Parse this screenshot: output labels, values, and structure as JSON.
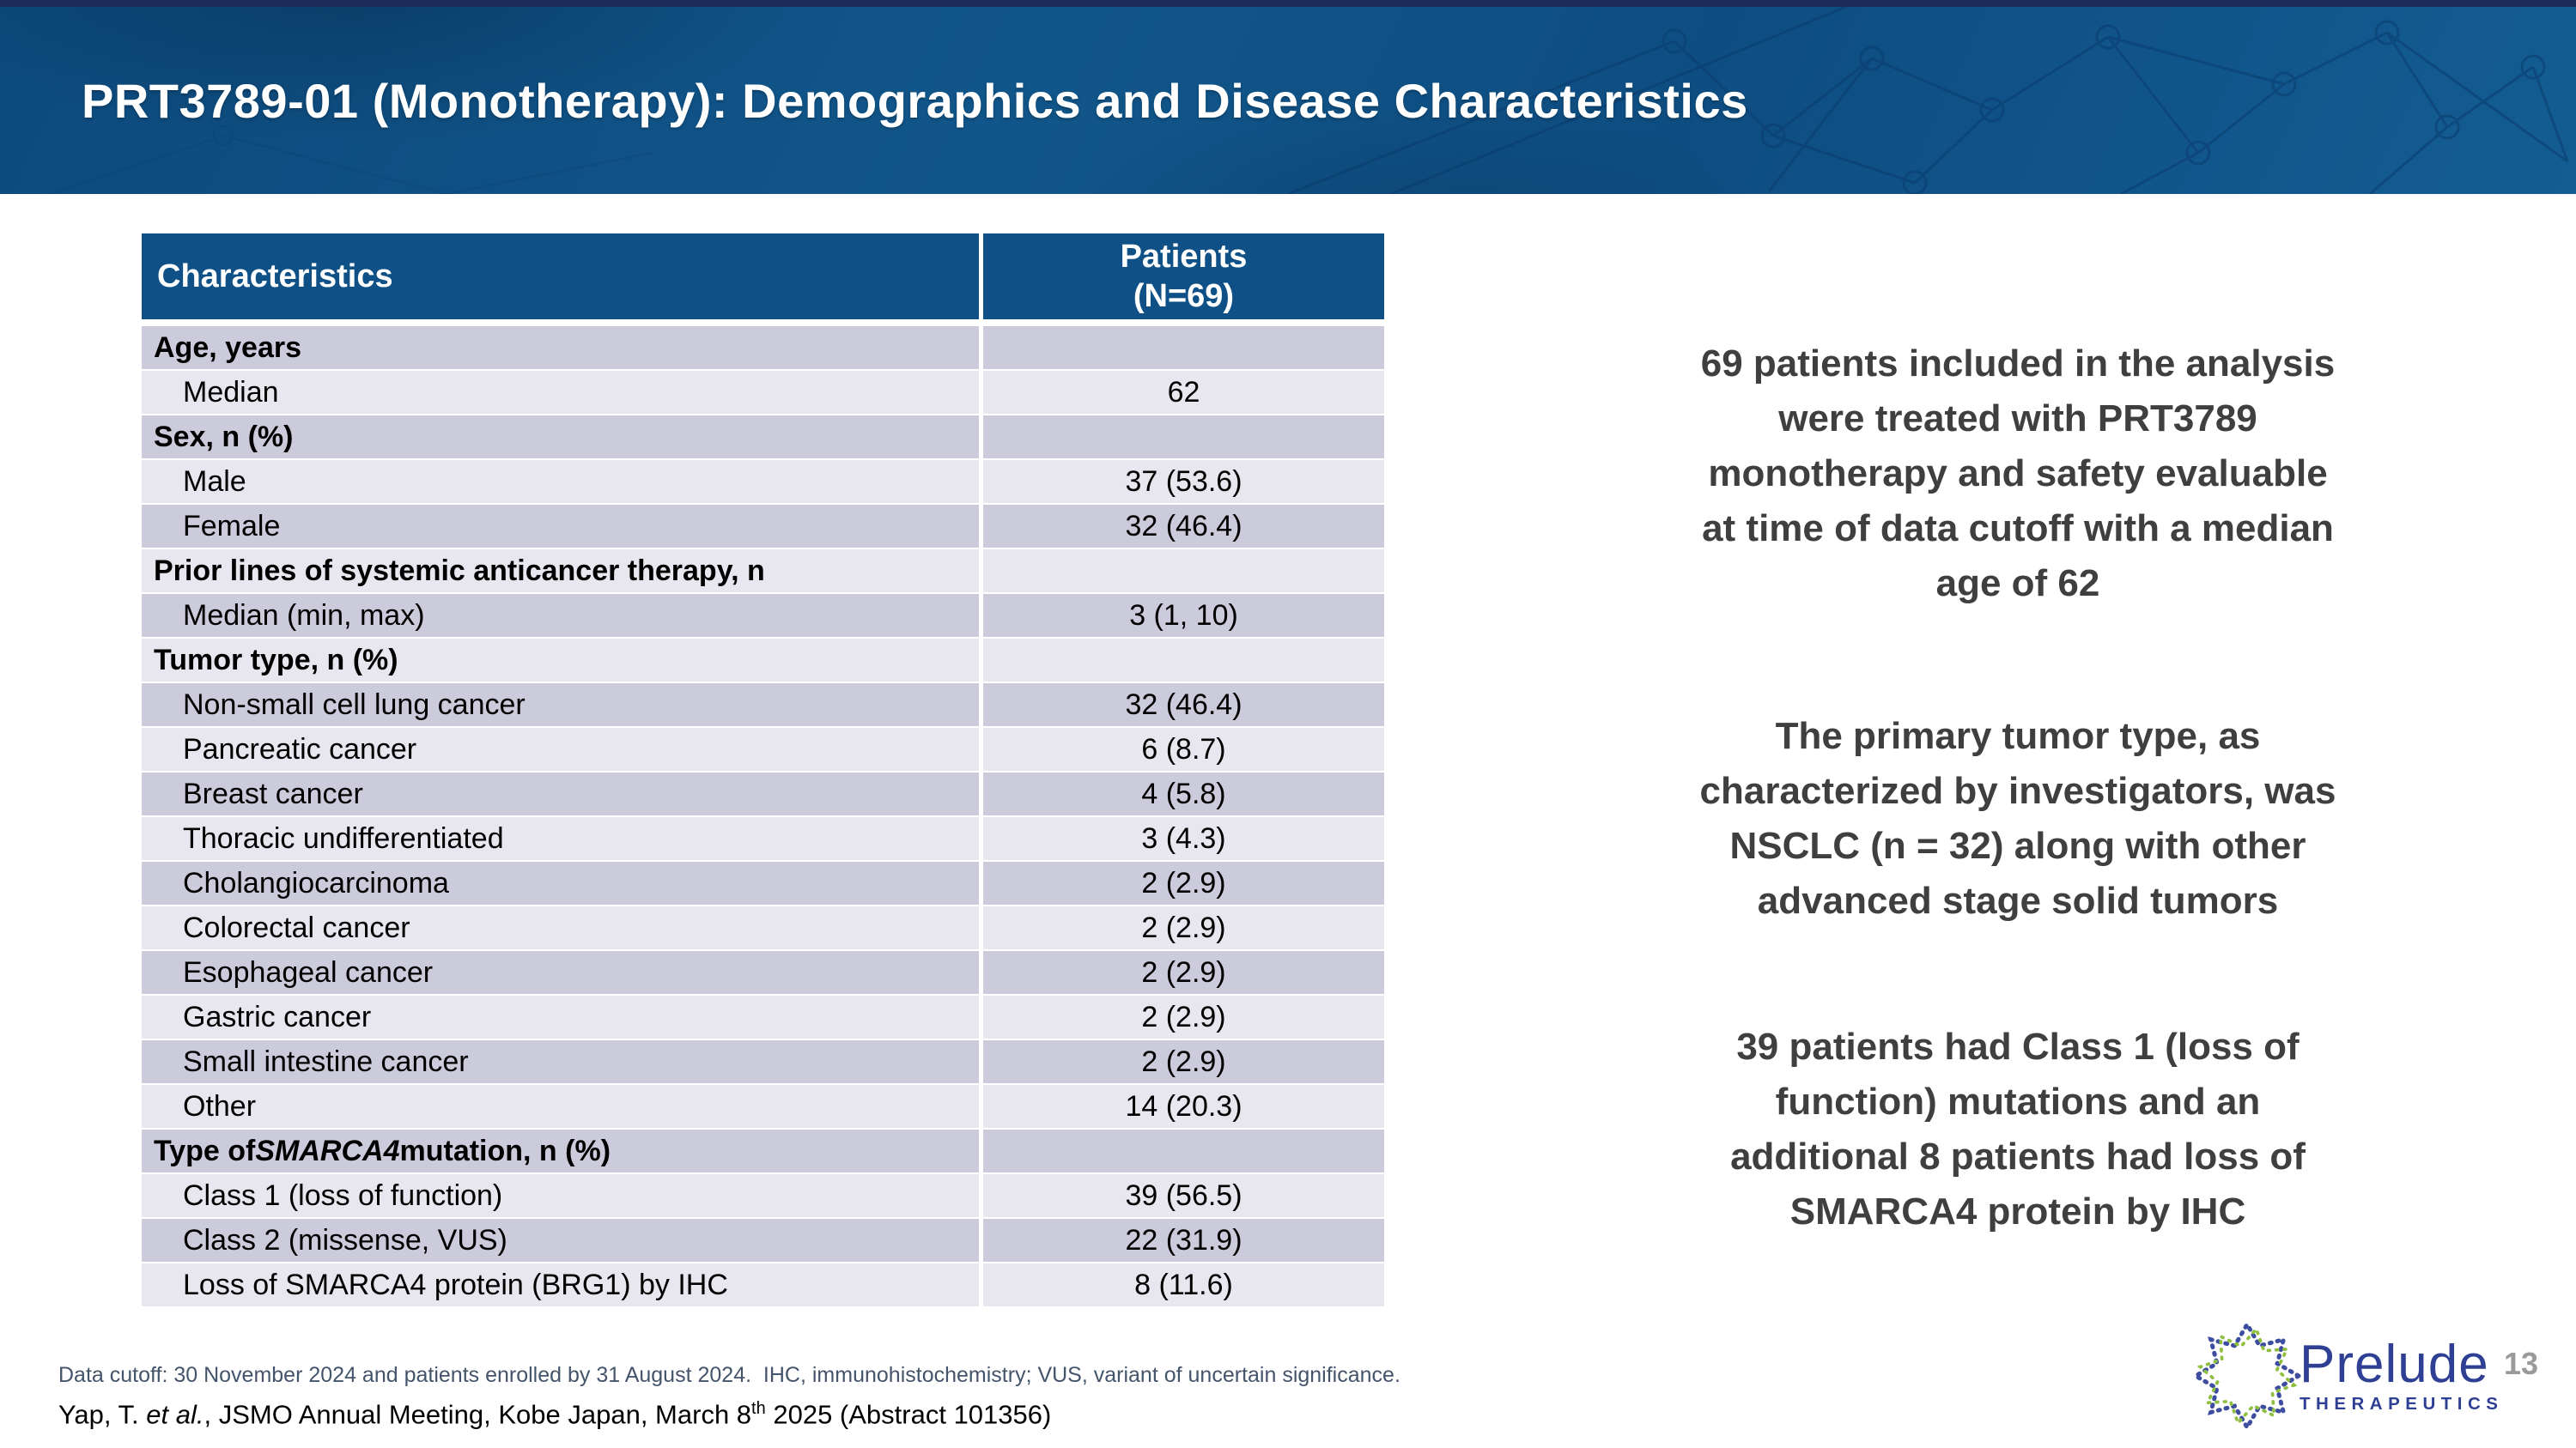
{
  "slide": {
    "title": "PRT3789-01 (Monotherapy): Demographics and Disease Characteristics",
    "page_number": "13"
  },
  "colors": {
    "top_strip_navy": "#1a2b5c",
    "banner_blue": "#0e4d81",
    "table_header_blue": "#0f5186",
    "row_dark": "#cccbdb",
    "row_light": "#e8e7f0",
    "text_gray": "#3f3f3f",
    "footnote_color": "#44546a",
    "logo_blue": "#2e3f94",
    "page_number_gray": "#9a9a9a"
  },
  "table": {
    "header": {
      "col1": "Characteristics",
      "col2": "Patients\n(N=69)"
    },
    "rows": [
      {
        "category": true,
        "label": "Age, years",
        "value": ""
      },
      {
        "label": "Median",
        "value": "62"
      },
      {
        "category": true,
        "label": "Sex, n (%)",
        "value": ""
      },
      {
        "label": "Male",
        "value": "37 (53.6)"
      },
      {
        "label": "Female",
        "value": "32 (46.4)"
      },
      {
        "category": true,
        "label": "Prior lines of systemic anticancer therapy, n",
        "value": ""
      },
      {
        "label": "Median (min, max)",
        "value": "3 (1, 10)"
      },
      {
        "category": true,
        "label": "Tumor type, n (%)",
        "value": ""
      },
      {
        "label": "Non-small cell lung cancer",
        "value": "32 (46.4)"
      },
      {
        "label": "Pancreatic cancer",
        "value": "6 (8.7)"
      },
      {
        "label": "Breast cancer",
        "value": "4 (5.8)"
      },
      {
        "label": "Thoracic undifferentiated",
        "value": "3 (4.3)"
      },
      {
        "label": "Cholangiocarcinoma",
        "value": "2 (2.9)"
      },
      {
        "label": "Colorectal cancer",
        "value": "2 (2.9)"
      },
      {
        "label": "Esophageal cancer",
        "value": "2 (2.9)"
      },
      {
        "label": "Gastric cancer",
        "value": "2 (2.9)"
      },
      {
        "label": "Small intestine cancer",
        "value": "2 (2.9)"
      },
      {
        "label": "Other",
        "value": "14 (20.3)"
      },
      {
        "category": true,
        "label_prefix": "Type of ",
        "label_italic": "SMARCA4",
        "label_suffix": " mutation, n (%)",
        "value": ""
      },
      {
        "label": "Class 1 (loss of function)",
        "value": "39 (56.5)"
      },
      {
        "label": "Class 2 (missense, VUS)",
        "value": "22 (31.9)"
      },
      {
        "label": "Loss of SMARCA4 protein (BRG1) by IHC",
        "value": "8 (11.6)"
      }
    ]
  },
  "highlights": {
    "block1": "69 patients included in the analysis\nwere treated with PRT3789\nmonotherapy and safety evaluable\nat time of data cutoff with a median\nage of 62",
    "block2": "The primary tumor type, as\ncharacterized by investigators, was\nNSCLC (n = 32) along with other\nadvanced stage solid tumors",
    "block3": "39 patients had Class 1 (loss of\nfunction) mutations and an\nadditional 8 patients had loss of\nSMARCA4 protein by IHC"
  },
  "footer": {
    "footnote": "Data cutoff: 30 November 2024 and patients enrolled by 31 August 2024.  IHC, immunohistochemistry; VUS, variant of uncertain significance.",
    "citation": {
      "prefix": "Yap, T. ",
      "etal": "et al.",
      "mid": ", JSMO Annual Meeting, Kobe Japan, March 8",
      "sup": "th",
      "suffix": " 2025 (Abstract 101356)"
    }
  },
  "logo": {
    "brand": "Prelude",
    "sub": "THERAPEUTICS"
  }
}
